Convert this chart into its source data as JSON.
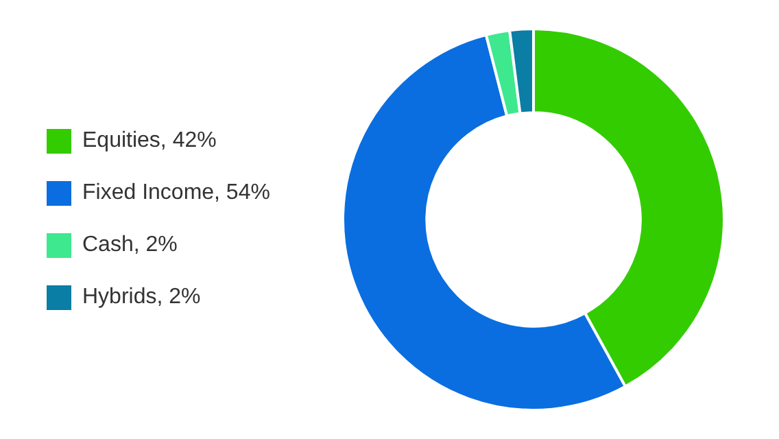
{
  "chart_data": {
    "type": "donut",
    "categories": [
      "Equities, 42%",
      "Fixed Income, 54%",
      "Cash, 2%",
      "Hybrids, 2%"
    ],
    "values": [
      42,
      54,
      2,
      2
    ],
    "colors": [
      "#33cc00",
      "#0a6ee0",
      "#3ee88e",
      "#0a7ea4"
    ],
    "legend": "left"
  }
}
